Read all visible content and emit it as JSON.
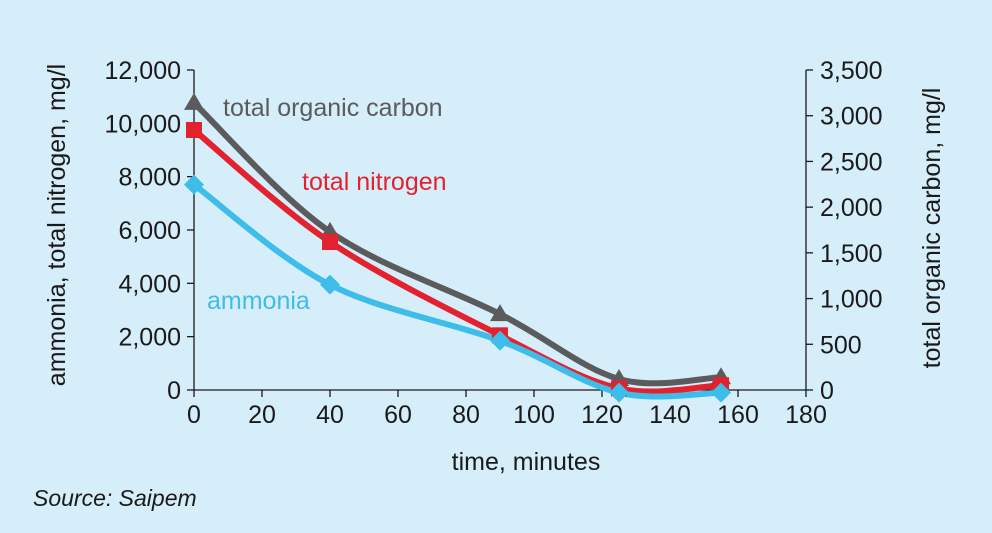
{
  "source": "Source: Saipem",
  "chart_data": {
    "type": "line",
    "xlabel": "time, minutes",
    "ylabel_left": "ammonia, total nitrogen, mg/l",
    "ylabel_right": "total organic carbon, mg/l",
    "xlim": [
      0,
      180
    ],
    "ylim_left": [
      0,
      12000
    ],
    "ylim_right": [
      0,
      3500
    ],
    "x_ticks": [
      "0",
      "20",
      "40",
      "60",
      "80",
      "100",
      "120",
      "140",
      "160",
      "180"
    ],
    "y_left_ticks": [
      "0",
      "2,000",
      "4,000",
      "6,000",
      "8,000",
      "10,000",
      "12,000"
    ],
    "y_right_ticks": [
      "0",
      "500",
      "1,000",
      "1,500",
      "2,000",
      "2,500",
      "3,000",
      "3,500"
    ],
    "grid": false,
    "series": [
      {
        "name": "total organic carbon",
        "axis": "right",
        "color": "#5b5b5d",
        "marker": "triangle",
        "x": [
          0,
          40,
          90,
          125,
          155
        ],
        "y": [
          3140,
          1730,
          830,
          120,
          140
        ]
      },
      {
        "name": "total nitrogen",
        "axis": "left",
        "color": "#e3222f",
        "marker": "square",
        "x": [
          0,
          40,
          90,
          125,
          155
        ],
        "y": [
          9750,
          5550,
          2050,
          60,
          180
        ]
      },
      {
        "name": "ammonia",
        "axis": "left",
        "color": "#3fbdea",
        "marker": "diamond",
        "x": [
          0,
          40,
          90,
          125,
          155
        ],
        "y": [
          7700,
          3950,
          1850,
          -100,
          -100
        ]
      }
    ]
  }
}
